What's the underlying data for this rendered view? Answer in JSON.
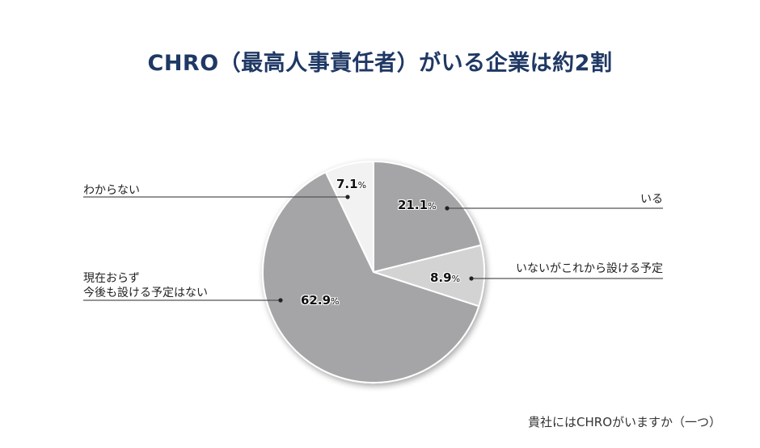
{
  "title": "CHRO（最高人事責任者）がいる企業は約2割",
  "question": "貴社にはCHROがいますか（一つ）",
  "colors": {
    "title": "#1f3864",
    "slice_dark": "#a5a5a8",
    "slice_light": "#d3d3d4",
    "slice_lightest": "#f2f2f2",
    "leader": "#555555"
  },
  "labels": {
    "yes": "いる",
    "planned": "いないがこれから設ける予定",
    "no_line1": "現在おらず",
    "no_line2": "今後も設ける予定はない",
    "unknown": "わからない"
  },
  "values_text": {
    "yes": "21.1",
    "planned": "8.9",
    "no": "62.9",
    "unknown": "7.1",
    "unit": "%"
  },
  "chart_data": {
    "type": "pie",
    "title": "CHRO（最高人事責任者）がいる企業は約2割",
    "subtitle": "貴社にはCHROがいますか（一つ）",
    "categories": [
      "いる",
      "いないがこれから設ける予定",
      "現在おらず今後も設ける予定はない",
      "わからない"
    ],
    "values": [
      21.1,
      8.9,
      62.9,
      7.1
    ],
    "unit": "%",
    "start_angle": "12 o'clock",
    "direction": "clockwise",
    "slice_colors": [
      "#a5a5a8",
      "#d3d3d4",
      "#a5a5a8",
      "#f2f2f2"
    ],
    "legend": "none (leader-line labels)"
  }
}
